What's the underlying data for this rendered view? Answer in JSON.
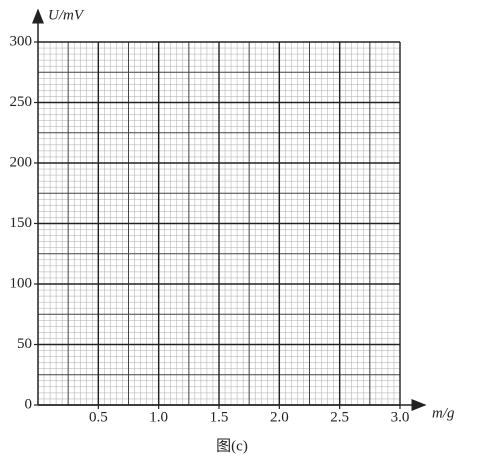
{
  "chart_data": {
    "type": "grid-paper",
    "x_label": "m/g",
    "y_label": "U/mV",
    "caption": "图(c)",
    "xlim": [
      0,
      3
    ],
    "xticks": [
      0.5,
      {
        "value": 1,
        "label": "1.0"
      },
      1.5,
      {
        "value": 2,
        "label": "2.0"
      },
      2.5,
      {
        "value": 3,
        "label": "3.0"
      }
    ],
    "ylim": [
      0,
      300
    ],
    "yticks": [
      0,
      50,
      100,
      150,
      200,
      250,
      300
    ],
    "grid": true
  }
}
